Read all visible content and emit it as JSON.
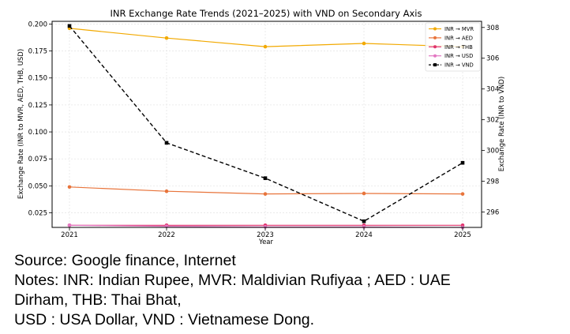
{
  "chart_data": {
    "type": "line",
    "title": "INR Exchange Rate Trends (2021–2025) with VND on Secondary Axis",
    "xlabel": "Year",
    "ylabel": "Exchange Rate (INR to MVR, AED, THB, USD)",
    "y2label": "Exchange Rate (INR to VND)",
    "x": [
      "2021",
      "2022",
      "2023",
      "2024",
      "2025"
    ],
    "ylim": [
      0.0115,
      0.2025
    ],
    "yticks": [
      "0.025",
      "0.050",
      "0.075",
      "0.100",
      "0.125",
      "0.150",
      "0.175",
      "0.200"
    ],
    "y2lim": [
      295.0,
      308.4
    ],
    "y2ticks": [
      "296",
      "298",
      "300",
      "302",
      "304",
      "306",
      "308"
    ],
    "grid": true,
    "legend_position": "top-right",
    "series": [
      {
        "name": "INR → MVR",
        "axis": "left",
        "color": "#f2a900",
        "style": "solid",
        "marker": "circle",
        "values": [
          0.196,
          0.187,
          0.179,
          0.182,
          0.179
        ]
      },
      {
        "name": "INR → AED",
        "axis": "left",
        "color": "#e8743b",
        "style": "solid",
        "marker": "circle",
        "values": [
          0.049,
          0.045,
          0.0425,
          0.043,
          0.0425
        ]
      },
      {
        "name": "INR → THB",
        "axis": "left",
        "color": "#e0336b",
        "style": "solid",
        "marker": "circle",
        "values": [
          0.0135,
          0.0135,
          0.0135,
          0.0135,
          0.0135
        ]
      },
      {
        "name": "INR → USD",
        "axis": "left",
        "color": "#e377c2",
        "style": "solid",
        "marker": "circle",
        "values": [
          0.0135,
          0.0125,
          0.012,
          0.012,
          0.0115
        ]
      },
      {
        "name": "INR → VND",
        "axis": "right",
        "color": "#000000",
        "style": "dashed",
        "marker": "square",
        "values": [
          308.1,
          300.5,
          298.2,
          295.4,
          299.2
        ]
      }
    ]
  },
  "source": {
    "line1": "Source: Google finance, Internet",
    "line2": "Notes: INR: Indian Rupee, MVR: Maldivian Rufiyaa ; AED : UAE",
    "line3": "Dirham, THB: Thai Bhat,",
    "line4": "USD : USA Dollar, VND : Vietnamese Dong."
  }
}
